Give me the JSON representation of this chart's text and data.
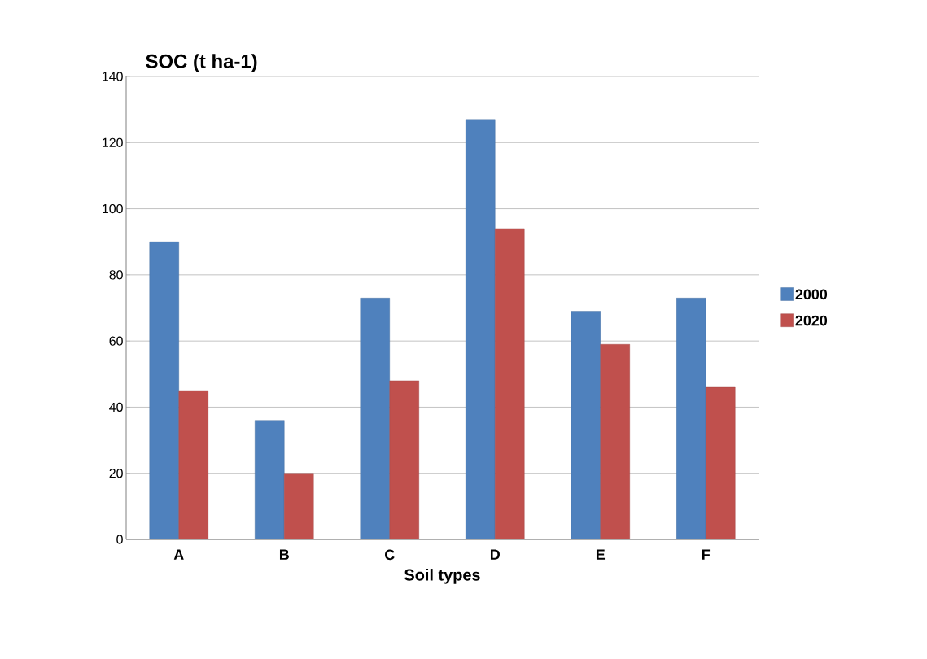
{
  "chart_data": {
    "type": "bar",
    "ylabel": "SOC (t ha-1)",
    "xlabel": "Soil types",
    "categories": [
      "A",
      "B",
      "C",
      "D",
      "E",
      "F"
    ],
    "series": [
      {
        "name": "2000",
        "color": "#4f81bd",
        "values": [
          90,
          36,
          73,
          127,
          69,
          73
        ]
      },
      {
        "name": "2020",
        "color": "#c0504d",
        "values": [
          45,
          20,
          48,
          94,
          59,
          46
        ]
      }
    ],
    "ylim": [
      0,
      140
    ],
    "yticks": [
      0,
      20,
      40,
      60,
      80,
      100,
      120,
      140
    ],
    "grid": "y",
    "legend": "right"
  }
}
